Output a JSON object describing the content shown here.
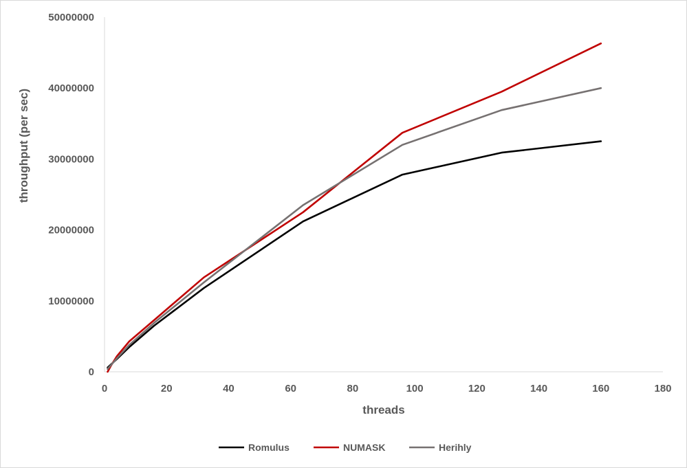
{
  "chart_data": {
    "type": "line",
    "title": "",
    "xlabel": "threads",
    "ylabel": "throughput (per sec)",
    "xlim": [
      0,
      180
    ],
    "ylim": [
      0,
      50000000
    ],
    "xticks": [
      0,
      20,
      40,
      60,
      80,
      100,
      120,
      140,
      160,
      180
    ],
    "yticks": [
      0,
      10000000,
      20000000,
      30000000,
      40000000,
      50000000
    ],
    "grid": false,
    "legend_position": "bottom",
    "series": [
      {
        "name": "Romulus",
        "color": "#000000",
        "x": [
          1,
          2,
          4,
          8,
          16,
          32,
          64,
          96,
          128,
          160
        ],
        "y": [
          600000,
          1000000,
          1800000,
          3500000,
          6500000,
          11800000,
          21200000,
          27800000,
          30900000,
          32500000
        ]
      },
      {
        "name": "NUMASK",
        "color": "#c00000",
        "x": [
          1,
          2,
          4,
          8,
          16,
          32,
          64,
          96,
          128,
          160
        ],
        "y": [
          0,
          800000,
          2200000,
          4300000,
          7300000,
          13300000,
          22500000,
          33700000,
          39500000,
          46300000
        ]
      },
      {
        "name": "Herihly",
        "color": "#767171",
        "x": [
          1,
          2,
          4,
          8,
          16,
          32,
          64,
          96,
          128,
          160
        ],
        "y": [
          400000,
          900000,
          1900000,
          3800000,
          6900000,
          12600000,
          23500000,
          32000000,
          36900000,
          40000000
        ]
      }
    ]
  }
}
